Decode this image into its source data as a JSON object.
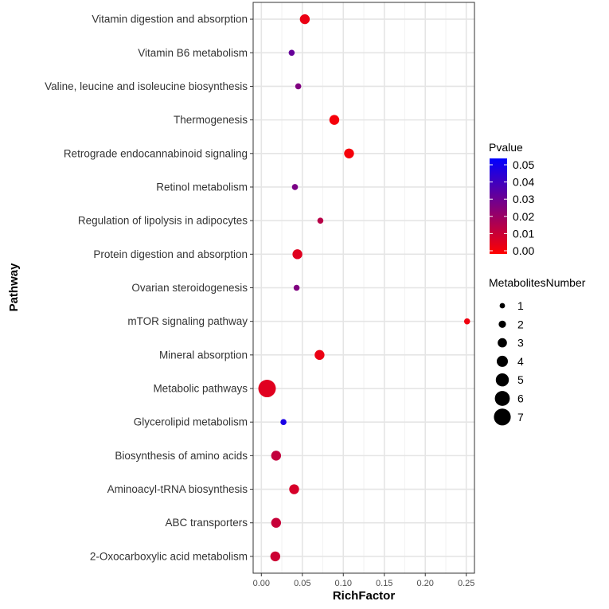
{
  "chart_data": {
    "type": "scatter",
    "xlabel": "RichFactor",
    "ylabel": "Pathway",
    "xlim": [
      -0.01,
      0.26
    ],
    "xticks": [
      0.0,
      0.05,
      0.1,
      0.15,
      0.2,
      0.25
    ],
    "xtick_labels": [
      "0.00",
      "0.05",
      "0.10",
      "0.15",
      "0.20",
      "0.25"
    ],
    "grid": true,
    "points": [
      {
        "pathway": "Vitamin digestion and absorption",
        "richFactor": 0.053,
        "pvalue": 0.004,
        "number": 3
      },
      {
        "pathway": "Vitamin B6 metabolism",
        "richFactor": 0.037,
        "pvalue": 0.03,
        "number": 1
      },
      {
        "pathway": "Valine, leucine and isoleucine biosynthesis",
        "richFactor": 0.045,
        "pvalue": 0.025,
        "number": 1
      },
      {
        "pathway": "Thermogenesis",
        "richFactor": 0.089,
        "pvalue": 0.002,
        "number": 3
      },
      {
        "pathway": "Retrograde endocannabinoid signaling",
        "richFactor": 0.107,
        "pvalue": 0.002,
        "number": 3
      },
      {
        "pathway": "Retinol metabolism",
        "richFactor": 0.041,
        "pvalue": 0.026,
        "number": 1
      },
      {
        "pathway": "Regulation of lipolysis in adipocytes",
        "richFactor": 0.072,
        "pvalue": 0.014,
        "number": 1
      },
      {
        "pathway": "Protein digestion and absorption",
        "richFactor": 0.044,
        "pvalue": 0.006,
        "number": 3
      },
      {
        "pathway": "Ovarian steroidogenesis",
        "richFactor": 0.043,
        "pvalue": 0.025,
        "number": 1
      },
      {
        "pathway": "mTOR signaling pathway",
        "richFactor": 0.251,
        "pvalue": 0.003,
        "number": 1
      },
      {
        "pathway": "Mineral absorption",
        "richFactor": 0.071,
        "pvalue": 0.004,
        "number": 3
      },
      {
        "pathway": "Metabolic pathways",
        "richFactor": 0.007,
        "pvalue": 0.006,
        "number": 7
      },
      {
        "pathway": "Glycerolipid metabolism",
        "richFactor": 0.027,
        "pvalue": 0.045,
        "number": 1
      },
      {
        "pathway": "Biosynthesis of amino acids",
        "richFactor": 0.018,
        "pvalue": 0.012,
        "number": 3
      },
      {
        "pathway": "Aminoacyl-tRNA biosynthesis",
        "richFactor": 0.04,
        "pvalue": 0.008,
        "number": 3
      },
      {
        "pathway": "ABC transporters",
        "richFactor": 0.018,
        "pvalue": 0.011,
        "number": 3
      },
      {
        "pathway": "2-Oxocarboxylic acid metabolism",
        "richFactor": 0.017,
        "pvalue": 0.01,
        "number": 3
      }
    ],
    "legend": {
      "color": {
        "title": "Pvalue",
        "range": [
          0.0,
          0.05
        ],
        "low_color": "#ff0000",
        "high_color": "#0000ff",
        "ticks": [
          0.05,
          0.04,
          0.03,
          0.02,
          0.01,
          0.0
        ],
        "tick_labels": [
          "0.05",
          "0.04",
          "0.03",
          "0.02",
          "0.01",
          "0.00"
        ]
      },
      "size": {
        "title": "MetabolitesNumber",
        "values": [
          1,
          2,
          3,
          4,
          5,
          6,
          7
        ],
        "labels": [
          "1",
          "2",
          "3",
          "4",
          "5",
          "6",
          "7"
        ]
      }
    }
  }
}
